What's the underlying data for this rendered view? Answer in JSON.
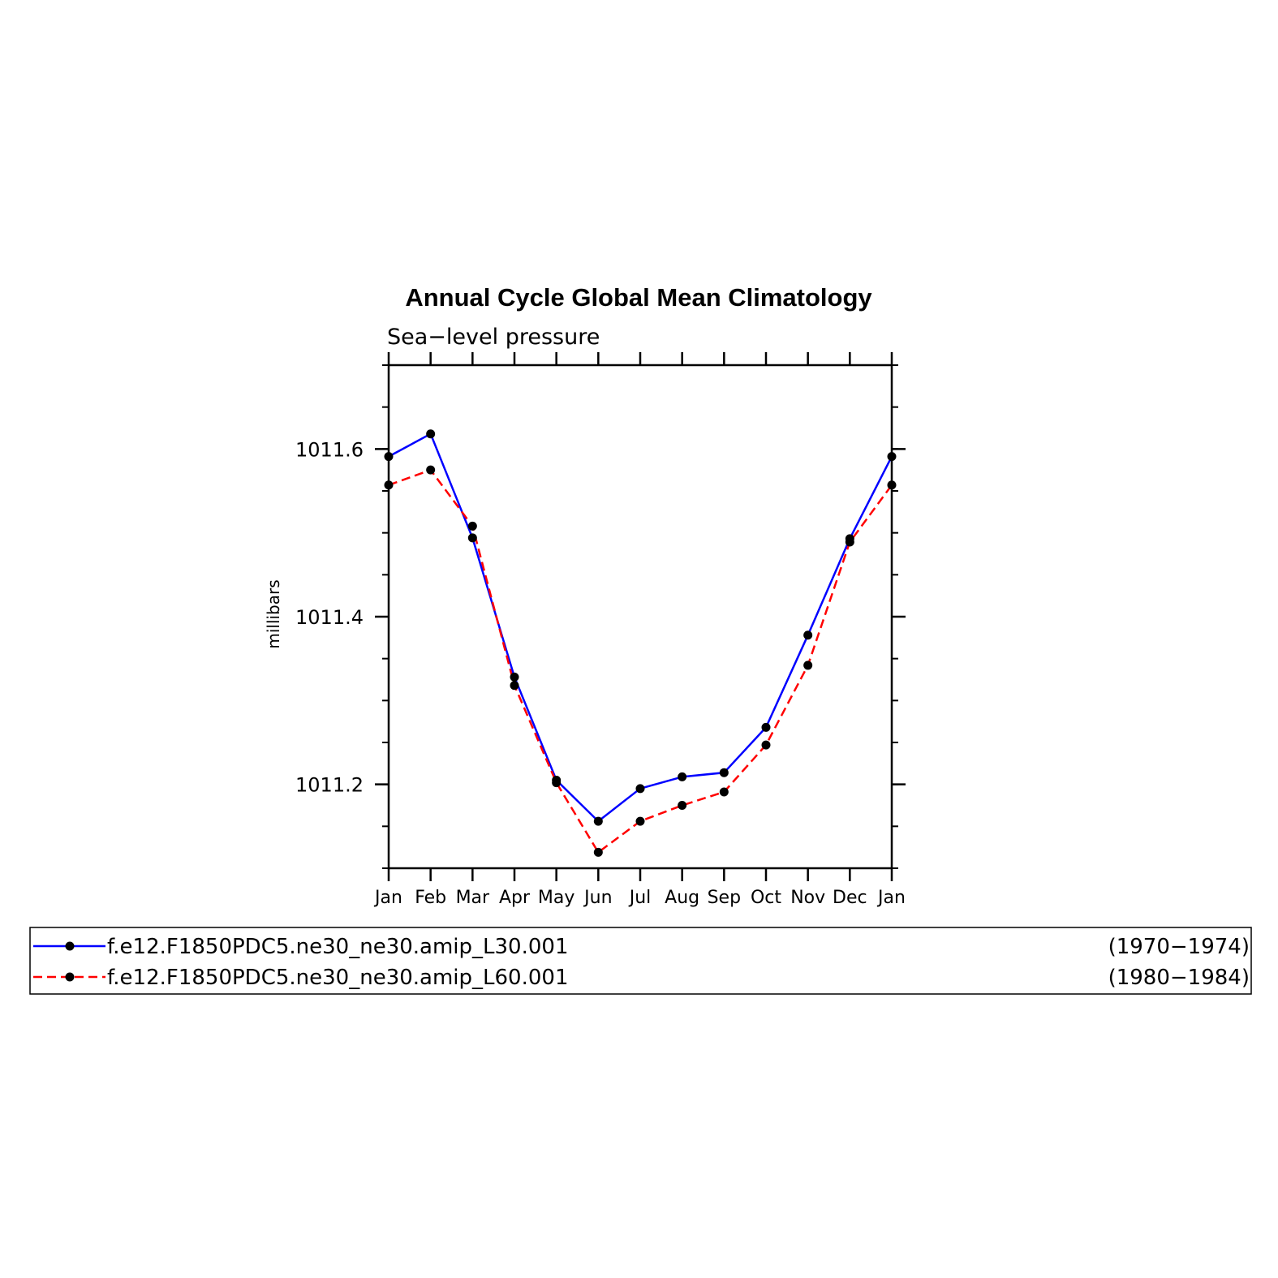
{
  "chart_data": {
    "type": "line",
    "title": "Annual Cycle Global Mean Climatology",
    "subtitle": "Sea−level pressure",
    "xlabel": "",
    "ylabel": "millibars",
    "categories": [
      "Jan",
      "Feb",
      "Mar",
      "Apr",
      "May",
      "Jun",
      "Jul",
      "Aug",
      "Sep",
      "Oct",
      "Nov",
      "Dec",
      "Jan"
    ],
    "ylim": [
      1011.1,
      1011.7
    ],
    "yticks": [
      {
        "value": 1011.2,
        "label": "1011.2"
      },
      {
        "value": 1011.4,
        "label": "1011.4"
      },
      {
        "value": 1011.6,
        "label": "1011.6"
      }
    ],
    "grid": false,
    "series": [
      {
        "name": "f.e12.F1850PDC5.ne30_ne30.amip_L30.001",
        "period": "(1970−1974)",
        "color": "#0000ff",
        "dash": "solid",
        "values": [
          1011.591,
          1011.618,
          1011.494,
          1011.328,
          1011.205,
          1011.156,
          1011.195,
          1011.209,
          1011.214,
          1011.268,
          1011.378,
          1011.493,
          1011.591
        ]
      },
      {
        "name": "f.e12.F1850PDC5.ne30_ne30.amip_L60.001",
        "period": "(1980−1984)",
        "color": "#ff0000",
        "dash": "dashed",
        "values": [
          1011.557,
          1011.575,
          1011.508,
          1011.318,
          1011.202,
          1011.119,
          1011.156,
          1011.175,
          1011.191,
          1011.247,
          1011.342,
          1011.489,
          1011.557
        ]
      }
    ],
    "marker_color": "#000000",
    "legend_placement": "bottom"
  }
}
